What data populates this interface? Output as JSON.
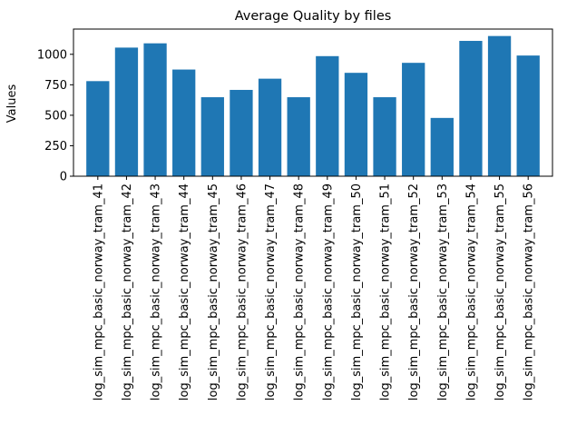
{
  "chart_data": {
    "type": "bar",
    "title": "Average Quality by files",
    "xlabel": "",
    "ylabel": "Values",
    "categories": [
      "log_sim_mpc_basic_norway_tram_41",
      "log_sim_mpc_basic_norway_tram_42",
      "log_sim_mpc_basic_norway_tram_43",
      "log_sim_mpc_basic_norway_tram_44",
      "log_sim_mpc_basic_norway_tram_45",
      "log_sim_mpc_basic_norway_tram_46",
      "log_sim_mpc_basic_norway_tram_47",
      "log_sim_mpc_basic_norway_tram_48",
      "log_sim_mpc_basic_norway_tram_49",
      "log_sim_mpc_basic_norway_tram_50",
      "log_sim_mpc_basic_norway_tram_51",
      "log_sim_mpc_basic_norway_tram_52",
      "log_sim_mpc_basic_norway_tram_53",
      "log_sim_mpc_basic_norway_tram_54",
      "log_sim_mpc_basic_norway_tram_55",
      "log_sim_mpc_basic_norway_tram_56"
    ],
    "values": [
      780,
      1055,
      1090,
      875,
      648,
      708,
      800,
      648,
      985,
      848,
      648,
      930,
      478,
      1110,
      1150,
      990
    ],
    "ylim": [
      0,
      1207
    ],
    "yticks": [
      0,
      250,
      500,
      750,
      1000
    ],
    "ytick_labels": [
      "0",
      "250",
      "500",
      "750",
      "1000"
    ],
    "bar_color": "#1f77b4",
    "grid": false,
    "legend": "none"
  }
}
